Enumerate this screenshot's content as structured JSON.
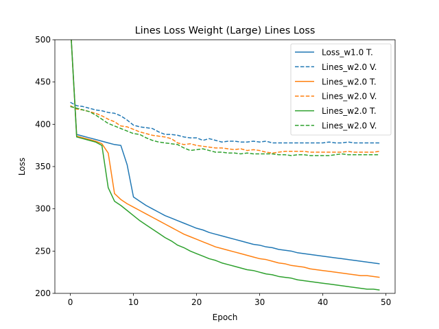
{
  "chart_data": {
    "type": "line",
    "title": "Lines Loss Weight (Large) Lines Loss",
    "xlabel": "Epoch",
    "ylabel": "Loss",
    "xlim": [
      -2.45,
      51.45
    ],
    "ylim": [
      200,
      500
    ],
    "xticks": [
      0,
      10,
      20,
      30,
      40,
      50
    ],
    "yticks": [
      200,
      250,
      300,
      350,
      400,
      450,
      500
    ],
    "grid": false,
    "legend_position": "top-right",
    "series": [
      {
        "name": "Loss_w1.0 T.",
        "color": "#1f77b4",
        "dash": "solid",
        "x": [
          0,
          1,
          2,
          3,
          4,
          5,
          6,
          7,
          8,
          9,
          10,
          11,
          12,
          13,
          14,
          15,
          16,
          17,
          18,
          19,
          20,
          21,
          22,
          23,
          24,
          25,
          26,
          27,
          28,
          29,
          30,
          31,
          32,
          33,
          34,
          35,
          36,
          37,
          38,
          39,
          40,
          41,
          42,
          43,
          44,
          45,
          46,
          47,
          48,
          49
        ],
        "y": [
          520,
          388,
          386,
          384,
          382,
          380,
          378,
          376,
          375,
          352,
          314,
          309,
          304,
          300,
          296,
          292,
          289,
          286,
          283,
          280,
          277,
          275,
          272,
          270,
          268,
          266,
          264,
          262,
          260,
          258,
          257,
          255,
          254,
          252,
          251,
          250,
          248,
          247,
          246,
          245,
          244,
          243,
          242,
          241,
          240,
          239,
          238,
          237,
          236,
          235
        ]
      },
      {
        "name": "Lines_w2.0 V.",
        "color": "#1f77b4",
        "dash": "dashed",
        "x": [
          0,
          1,
          2,
          3,
          4,
          5,
          6,
          7,
          8,
          9,
          10,
          11,
          12,
          13,
          14,
          15,
          16,
          17,
          18,
          19,
          20,
          21,
          22,
          23,
          24,
          25,
          26,
          27,
          28,
          29,
          30,
          31,
          32,
          33,
          34,
          35,
          36,
          37,
          38,
          39,
          40,
          41,
          42,
          43,
          44,
          45,
          46,
          47,
          48,
          49
        ],
        "y": [
          426,
          422,
          421,
          419,
          417,
          416,
          414,
          413,
          410,
          405,
          399,
          397,
          396,
          395,
          391,
          388,
          388,
          387,
          385,
          384,
          384,
          381,
          383,
          381,
          379,
          380,
          380,
          379,
          379,
          380,
          379,
          380,
          378,
          378,
          378,
          378,
          378,
          378,
          378,
          378,
          378,
          379,
          378,
          378,
          379,
          378,
          378,
          378,
          378,
          378
        ]
      },
      {
        "name": "Lines_w2.0 T.",
        "color": "#ff7f0e",
        "dash": "solid",
        "x": [
          0,
          1,
          2,
          3,
          4,
          5,
          6,
          7,
          8,
          9,
          10,
          11,
          12,
          13,
          14,
          15,
          16,
          17,
          18,
          19,
          20,
          21,
          22,
          23,
          24,
          25,
          26,
          27,
          28,
          29,
          30,
          31,
          32,
          33,
          34,
          35,
          36,
          37,
          38,
          39,
          40,
          41,
          42,
          43,
          44,
          45,
          46,
          47,
          48,
          49
        ],
        "y": [
          520,
          386,
          384,
          382,
          380,
          377,
          366,
          318,
          311,
          306,
          302,
          298,
          294,
          290,
          286,
          282,
          278,
          274,
          270,
          267,
          264,
          261,
          258,
          255,
          253,
          251,
          249,
          247,
          245,
          243,
          241,
          240,
          238,
          236,
          235,
          233,
          232,
          231,
          229,
          228,
          227,
          226,
          225,
          224,
          223,
          222,
          221,
          221,
          220,
          219
        ]
      },
      {
        "name": "Lines_w2.0 V.",
        "color": "#ff7f0e",
        "dash": "dashed",
        "x": [
          0,
          1,
          2,
          3,
          4,
          5,
          6,
          7,
          8,
          9,
          10,
          11,
          12,
          13,
          14,
          15,
          16,
          17,
          18,
          19,
          20,
          21,
          22,
          23,
          24,
          25,
          26,
          27,
          28,
          29,
          30,
          31,
          32,
          33,
          34,
          35,
          36,
          37,
          38,
          39,
          40,
          41,
          42,
          43,
          44,
          45,
          46,
          47,
          48,
          49
        ],
        "y": [
          422,
          418,
          417,
          415,
          413,
          410,
          406,
          403,
          398,
          397,
          394,
          391,
          389,
          387,
          386,
          385,
          383,
          378,
          376,
          377,
          375,
          374,
          373,
          372,
          372,
          371,
          370,
          371,
          369,
          370,
          369,
          367,
          366,
          367,
          368,
          368,
          368,
          368,
          367,
          367,
          367,
          367,
          367,
          367,
          368,
          367,
          367,
          367,
          367,
          368
        ]
      },
      {
        "name": "Lines_w2.0 T.",
        "color": "#2ca02c",
        "dash": "solid",
        "x": [
          0,
          1,
          2,
          3,
          4,
          5,
          6,
          7,
          8,
          9,
          10,
          11,
          12,
          13,
          14,
          15,
          16,
          17,
          18,
          19,
          20,
          21,
          22,
          23,
          24,
          25,
          26,
          27,
          28,
          29,
          30,
          31,
          32,
          33,
          34,
          35,
          36,
          37,
          38,
          39,
          40,
          41,
          42,
          43,
          44,
          45,
          46,
          47,
          48,
          49
        ],
        "y": [
          520,
          385,
          383,
          381,
          379,
          375,
          325,
          309,
          304,
          298,
          292,
          286,
          281,
          276,
          271,
          266,
          262,
          257,
          254,
          250,
          247,
          244,
          241,
          239,
          236,
          234,
          232,
          230,
          228,
          227,
          225,
          223,
          222,
          220,
          219,
          218,
          216,
          215,
          214,
          213,
          212,
          211,
          210,
          209,
          208,
          207,
          206,
          205,
          205,
          204
        ]
      },
      {
        "name": "Lines_w2.0 V.",
        "color": "#2ca02c",
        "dash": "dashed",
        "x": [
          0,
          1,
          2,
          3,
          4,
          5,
          6,
          7,
          8,
          9,
          10,
          11,
          12,
          13,
          14,
          15,
          16,
          17,
          18,
          19,
          20,
          21,
          22,
          23,
          24,
          25,
          26,
          27,
          28,
          29,
          30,
          31,
          32,
          33,
          34,
          35,
          36,
          37,
          38,
          39,
          40,
          41,
          42,
          43,
          44,
          45,
          46,
          47,
          48,
          49
        ],
        "y": [
          421,
          419,
          417,
          415,
          411,
          406,
          401,
          398,
          395,
          392,
          389,
          388,
          384,
          381,
          379,
          378,
          377,
          376,
          372,
          369,
          370,
          371,
          369,
          367,
          367,
          366,
          366,
          365,
          366,
          365,
          365,
          365,
          365,
          364,
          364,
          363,
          364,
          364,
          363,
          363,
          363,
          363,
          364,
          365,
          364,
          364,
          364,
          364,
          364,
          364
        ]
      }
    ]
  }
}
